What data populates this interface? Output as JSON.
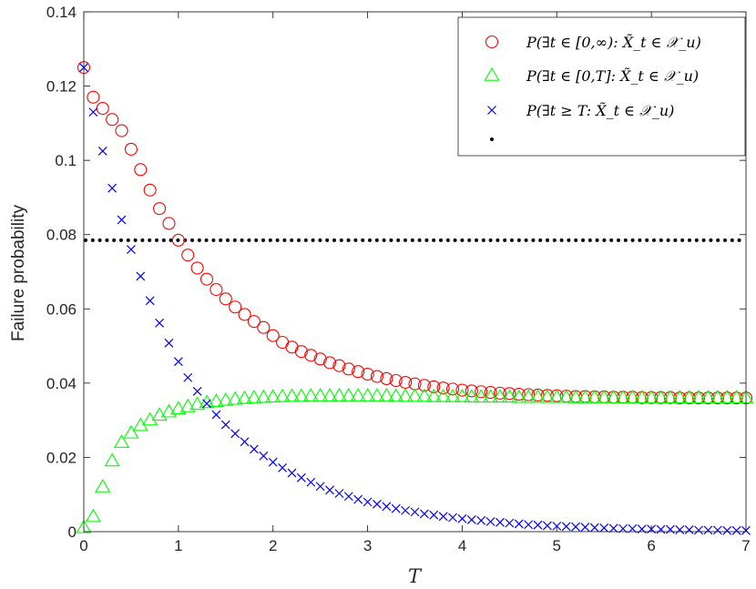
{
  "chart_data": {
    "type": "scatter",
    "title": "",
    "xlabel": "T",
    "ylabel": "Failure probability",
    "xlim": [
      0,
      7
    ],
    "ylim": [
      0,
      0.14
    ],
    "xticks": [
      "0",
      "1",
      "2",
      "3",
      "4",
      "5",
      "6",
      "7"
    ],
    "yticks": [
      "0",
      "0.02",
      "0.04",
      "0.06",
      "0.08",
      "0.1",
      "0.12",
      "0.14"
    ],
    "grid": false,
    "legend_position": "top-right",
    "x": [
      0.0,
      0.1,
      0.2,
      0.3,
      0.4,
      0.5,
      0.6,
      0.7,
      0.8,
      0.9,
      1.0,
      1.1,
      1.2,
      1.3,
      1.4,
      1.5,
      1.6,
      1.7,
      1.8,
      1.9,
      2.0,
      2.1,
      2.2,
      2.3,
      2.4,
      2.5,
      2.6,
      2.7,
      2.8,
      2.9,
      3.0,
      3.1,
      3.2,
      3.3,
      3.4,
      3.5,
      3.6,
      3.7,
      3.8,
      3.9,
      4.0,
      4.1,
      4.2,
      4.3,
      4.4,
      4.5,
      4.6,
      4.7,
      4.8,
      4.9,
      5.0,
      5.1,
      5.2,
      5.3,
      5.4,
      5.5,
      5.6,
      5.7,
      5.8,
      5.9,
      6.0,
      6.1,
      6.2,
      6.3,
      6.4,
      6.5,
      6.6,
      6.7,
      6.8,
      6.9,
      7.0
    ],
    "series": [
      {
        "name": "P(∃t ∈ [0,∞): X̃_t ∈ 𝒳_u)",
        "marker": "circle",
        "color": "#ff0000",
        "values": [
          0.125,
          0.117,
          0.114,
          0.111,
          0.108,
          0.103,
          0.0975,
          0.092,
          0.087,
          0.083,
          0.0785,
          0.0745,
          0.071,
          0.068,
          0.0652,
          0.0627,
          0.0605,
          0.0585,
          0.0566,
          0.055,
          0.0528,
          0.051,
          0.0497,
          0.0485,
          0.0475,
          0.0465,
          0.0455,
          0.0447,
          0.0438,
          0.0431,
          0.0424,
          0.0418,
          0.0412,
          0.0407,
          0.0402,
          0.0398,
          0.0394,
          0.039,
          0.0387,
          0.0384,
          0.0381,
          0.0379,
          0.0377,
          0.0375,
          0.0373,
          0.0372,
          0.037,
          0.0369,
          0.0368,
          0.0367,
          0.0366,
          0.0365,
          0.0364,
          0.0364,
          0.0363,
          0.0363,
          0.0362,
          0.0362,
          0.0362,
          0.0361,
          0.0361,
          0.0361,
          0.0361,
          0.036,
          0.036,
          0.036,
          0.036,
          0.036,
          0.036,
          0.036,
          0.036
        ]
      },
      {
        "name": "P(∃t ∈ [0,T]: X̃_t ∈ 𝒳_u)",
        "marker": "triangle",
        "color": "#00ff00",
        "values": [
          0.001,
          0.004,
          0.012,
          0.019,
          0.024,
          0.0265,
          0.0285,
          0.03,
          0.0313,
          0.0322,
          0.033,
          0.0336,
          0.0342,
          0.0347,
          0.035,
          0.0353,
          0.0356,
          0.0358,
          0.036,
          0.0361,
          0.0362,
          0.0363,
          0.0364,
          0.0364,
          0.0365,
          0.0365,
          0.0365,
          0.0365,
          0.0365,
          0.0365,
          0.0365,
          0.0365,
          0.0365,
          0.0364,
          0.0364,
          0.0364,
          0.0364,
          0.0363,
          0.0363,
          0.0363,
          0.0363,
          0.0362,
          0.0362,
          0.0362,
          0.0362,
          0.0362,
          0.0361,
          0.0361,
          0.0361,
          0.0361,
          0.0361,
          0.0361,
          0.036,
          0.036,
          0.036,
          0.036,
          0.036,
          0.036,
          0.036,
          0.036,
          0.036,
          0.036,
          0.036,
          0.036,
          0.036,
          0.036,
          0.036,
          0.036,
          0.036,
          0.036,
          0.036
        ]
      },
      {
        "name": "P(∃t ≥ T: X̃_t ∈ 𝒳_u)",
        "marker": "x",
        "color": "#0000ff",
        "values": [
          0.125,
          0.113,
          0.1025,
          0.0925,
          0.084,
          0.076,
          0.0688,
          0.0622,
          0.0562,
          0.0508,
          0.0458,
          0.0415,
          0.0378,
          0.0345,
          0.0315,
          0.0288,
          0.0264,
          0.0242,
          0.0222,
          0.0204,
          0.0187,
          0.0172,
          0.0158,
          0.0145,
          0.0133,
          0.0122,
          0.0112,
          0.0103,
          0.0095,
          0.0087,
          0.008,
          0.0074,
          0.0068,
          0.0062,
          0.0057,
          0.0053,
          0.0048,
          0.0045,
          0.0041,
          0.0038,
          0.0035,
          0.0032,
          0.003,
          0.0027,
          0.0025,
          0.0023,
          0.0021,
          0.0019,
          0.0018,
          0.0016,
          0.0015,
          0.0014,
          0.0013,
          0.0012,
          0.0011,
          0.001,
          0.0009,
          0.0008,
          0.0008,
          0.0007,
          0.0007,
          0.0006,
          0.0006,
          0.0005,
          0.0005,
          0.0004,
          0.0004,
          0.0004,
          0.0003,
          0.0003,
          0.0003
        ]
      },
      {
        "name": "",
        "marker": "dot",
        "color": "#000000",
        "constant": 0.0785
      }
    ]
  }
}
